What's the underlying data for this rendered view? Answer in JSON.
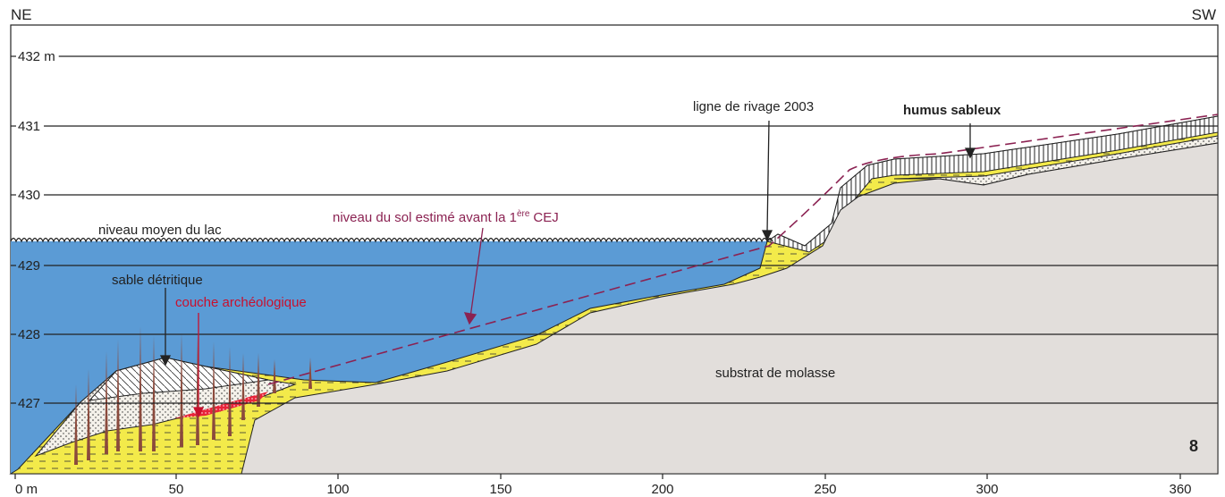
{
  "header": {
    "left": "NE",
    "right": "SW"
  },
  "y_axis": {
    "ticks": [
      "432 m",
      "431",
      "430",
      "429",
      "428",
      "427"
    ]
  },
  "x_axis": {
    "ticks": [
      "0 m",
      "50",
      "100",
      "150",
      "200",
      "250",
      "300",
      "360"
    ]
  },
  "labels": {
    "lake_level": "niveau moyen du lac",
    "detrital_sand": "sable détritique",
    "archaeological_layer": "couche archéologique",
    "estimated_ground": {
      "text": "niveau du sol estimé avant la 1",
      "superscript": "ère",
      "suffix": "CEJ"
    },
    "shoreline": "ligne de rivage 2003",
    "sandy_humus": "humus sableux",
    "molasse": "substrat de molasse"
  },
  "figure_number": "8"
}
